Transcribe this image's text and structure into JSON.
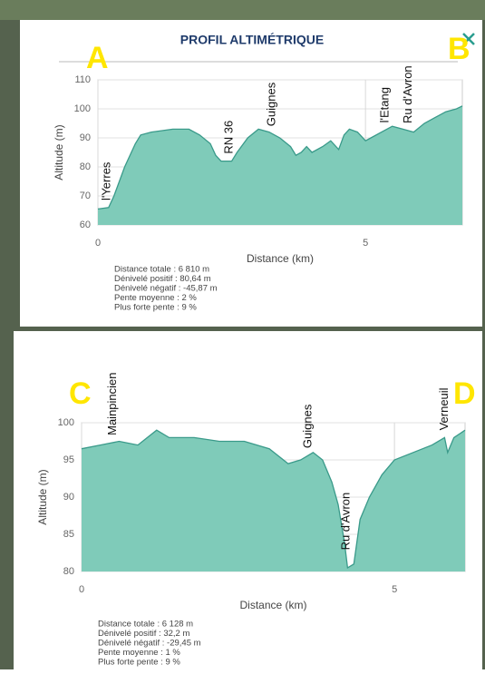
{
  "header": {
    "title": "PROFIL ALTIMÉTRIQUE"
  },
  "markers": [
    "A",
    "B",
    "C",
    "D"
  ],
  "chart_data": [
    {
      "type": "area",
      "color": "#7fcbb9",
      "line_color": "#3a9a8a",
      "grid": true,
      "x_label": "Distance (km)",
      "y_label": "Altitude (m)",
      "xlim": [
        0,
        6.81
      ],
      "ylim": [
        60,
        110
      ],
      "xticks": [
        0,
        5
      ],
      "yticks": [
        60,
        70,
        80,
        90,
        100,
        110
      ],
      "x": [
        0,
        0.2,
        0.3,
        0.5,
        0.7,
        0.8,
        1.0,
        1.4,
        1.7,
        1.9,
        2.1,
        2.2,
        2.3,
        2.5,
        2.6,
        2.8,
        3.0,
        3.2,
        3.4,
        3.6,
        3.7,
        3.8,
        3.9,
        4.0,
        4.2,
        4.35,
        4.5,
        4.6,
        4.7,
        4.85,
        5.0,
        5.1,
        5.3,
        5.5,
        5.7,
        5.9,
        6.1,
        6.3,
        6.5,
        6.7,
        6.81
      ],
      "values": [
        65.5,
        66,
        70,
        80,
        88,
        91,
        92,
        93,
        93,
        91,
        88,
        84,
        82,
        82,
        85,
        90,
        93,
        92,
        90,
        87,
        84,
        85,
        87,
        85,
        87,
        89,
        86,
        91,
        93,
        92,
        89,
        90,
        92,
        94,
        93,
        92,
        95,
        97,
        99,
        100,
        101
      ],
      "annotations": [
        {
          "text": "l'Yerres",
          "x": 0.17
        },
        {
          "text": "RN 36",
          "x": 2.46
        },
        {
          "text": "Guignes",
          "x": 3.25
        },
        {
          "text": "l'Etang",
          "x": 5.37
        },
        {
          "text": "Ru d'Avron",
          "x": 5.8
        }
      ],
      "stats": [
        "Distance totale : 6 810 m",
        "Dénivelé positif : 80,64 m",
        "Dénivelé négatif : -45,87 m",
        "Pente moyenne : 2 %",
        "Plus forte pente : 9 %"
      ]
    },
    {
      "type": "area",
      "color": "#7fcbb9",
      "line_color": "#3a9a8a",
      "grid": true,
      "x_label": "Distance (km)",
      "y_label": "Altitude (m)",
      "xlim": [
        0,
        6.128
      ],
      "ylim": [
        80,
        100
      ],
      "xticks": [
        0,
        5
      ],
      "yticks": [
        80,
        85,
        90,
        95,
        100
      ],
      "x": [
        0,
        0.3,
        0.6,
        0.9,
        1.2,
        1.4,
        1.8,
        2.2,
        2.6,
        3.0,
        3.3,
        3.5,
        3.7,
        3.85,
        4.0,
        4.1,
        4.2,
        4.25,
        4.35,
        4.45,
        4.6,
        4.8,
        5.0,
        5.3,
        5.6,
        5.8,
        5.85,
        5.95,
        6.128
      ],
      "values": [
        96.5,
        97,
        97.5,
        97,
        99,
        98,
        98,
        97.5,
        97.5,
        96.5,
        94.5,
        95,
        96,
        95,
        92,
        89,
        84,
        80.5,
        81,
        87,
        90,
        93,
        95,
        96,
        97,
        98,
        96,
        98,
        99
      ],
      "annotations": [
        {
          "text": "Mainpincien",
          "x": 0.5
        },
        {
          "text": "Guignes",
          "x": 3.62
        },
        {
          "text": "Ru d'Avron",
          "x": 4.23
        },
        {
          "text": "Verneuil",
          "x": 5.8
        }
      ],
      "stats": [
        "Distance totale : 6 128 m",
        "Dénivelé positif : 32,2 m",
        "Dénivelé négatif : -29,45 m",
        "Pente moyenne : 1 %",
        "Plus forte pente : 9 %"
      ]
    }
  ]
}
